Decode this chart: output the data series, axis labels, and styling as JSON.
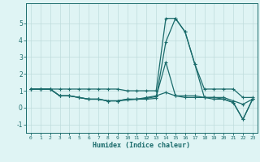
{
  "xlabel": "Humidex (Indice chaleur)",
  "x": [
    0,
    1,
    2,
    3,
    4,
    5,
    6,
    7,
    8,
    9,
    10,
    11,
    12,
    13,
    14,
    15,
    16,
    17,
    18,
    19,
    20,
    21,
    22,
    23
  ],
  "line1": [
    1.1,
    1.1,
    1.1,
    1.1,
    1.1,
    1.1,
    1.1,
    1.1,
    1.1,
    1.1,
    1.0,
    1.0,
    1.0,
    1.0,
    5.3,
    5.3,
    4.5,
    2.6,
    1.1,
    1.1,
    1.1,
    1.1,
    0.6,
    0.6
  ],
  "line2": [
    1.1,
    1.1,
    1.1,
    0.7,
    0.7,
    0.6,
    0.5,
    0.5,
    0.4,
    0.4,
    0.5,
    0.5,
    0.6,
    0.7,
    0.9,
    0.7,
    0.7,
    0.7,
    0.6,
    0.6,
    0.6,
    0.4,
    0.2,
    0.5
  ],
  "line3": [
    1.1,
    1.1,
    1.1,
    0.7,
    0.7,
    0.6,
    0.5,
    0.5,
    0.4,
    0.4,
    0.5,
    0.5,
    0.55,
    0.65,
    2.7,
    0.7,
    0.6,
    0.6,
    0.6,
    0.5,
    0.5,
    0.3,
    -0.7,
    0.5
  ],
  "line4": [
    1.1,
    1.1,
    1.1,
    0.7,
    0.7,
    0.6,
    0.5,
    0.5,
    0.4,
    0.4,
    0.45,
    0.5,
    0.5,
    0.55,
    3.9,
    5.3,
    4.5,
    2.6,
    0.6,
    0.6,
    0.5,
    0.3,
    -0.7,
    0.5
  ],
  "bg_color": "#dff4f4",
  "grid_color": "#bedddd",
  "line_color": "#1a6b6b",
  "ylim": [
    -1.5,
    6.2
  ],
  "yticks": [
    -1,
    0,
    1,
    2,
    3,
    4,
    5
  ],
  "xticks": [
    0,
    1,
    2,
    3,
    4,
    5,
    6,
    7,
    8,
    9,
    10,
    11,
    12,
    13,
    14,
    15,
    16,
    17,
    18,
    19,
    20,
    21,
    22,
    23
  ]
}
